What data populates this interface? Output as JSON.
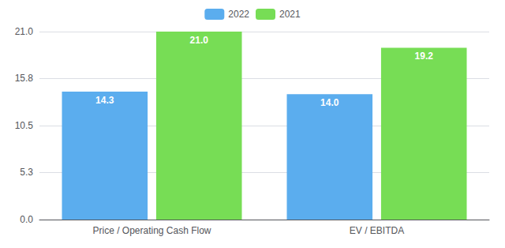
{
  "chart_data": {
    "type": "bar",
    "categories": [
      "Price / Operating Cash Flow",
      "EV / EBITDA"
    ],
    "series": [
      {
        "name": "2022",
        "color": "#5badee",
        "values": [
          14.3,
          14.0
        ],
        "value_labels": [
          "14.3",
          "14.0"
        ]
      },
      {
        "name": "2021",
        "color": "#77dd55",
        "values": [
          21.0,
          19.2
        ],
        "value_labels": [
          "21.0",
          "19.2"
        ]
      }
    ],
    "ylim": [
      0,
      21.0
    ],
    "yticks": [
      {
        "value": 0,
        "label": "0.0"
      },
      5.3,
      10.5,
      15.8,
      {
        "value": 21.0,
        "label": "21.0"
      }
    ],
    "grid": true,
    "legend": "top",
    "data_labels": true
  }
}
